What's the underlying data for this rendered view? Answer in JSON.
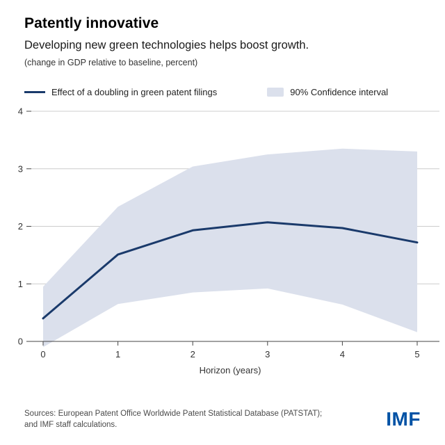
{
  "header": {
    "title": "Patently innovative",
    "subtitle": "Developing new green technologies helps boost growth.",
    "note": "(change in GDP relative to baseline, percent)"
  },
  "legend": {
    "line_label": "Effect of a doubling in green patent filings",
    "band_label": "90% Confidence interval"
  },
  "chart_data": {
    "type": "line",
    "x": [
      0,
      1,
      2,
      3,
      4,
      5
    ],
    "series": [
      {
        "name": "Effect of a doubling in green patent filings",
        "values": [
          0.4,
          1.51,
          1.93,
          2.07,
          1.97,
          1.72
        ]
      },
      {
        "name": "90% Confidence interval upper bound",
        "values": [
          0.95,
          2.34,
          3.04,
          3.25,
          3.35,
          3.3
        ]
      },
      {
        "name": "90% Confidence interval lower bound",
        "values": [
          -0.1,
          0.65,
          0.85,
          0.92,
          0.64,
          0.16
        ]
      }
    ],
    "title": "Patently innovative",
    "xlabel": "Horizon (years)",
    "ylabel": "",
    "ylim": [
      0,
      4
    ],
    "yticks": [
      0,
      1,
      2,
      3,
      4
    ],
    "xticks": [
      0,
      1,
      2,
      3,
      4,
      5
    ],
    "grid": true,
    "legend_position": "top"
  },
  "footer": {
    "sources_line1": "Sources: European Patent Office Worldwide Patent Statistical Database (PATSTAT);",
    "sources_line2": "and IMF staff calculations.",
    "logo": "IMF"
  },
  "colors": {
    "line": "#1a3a6b",
    "band": "#dbe0ec",
    "grid": "#cccccc",
    "axis": "#444444",
    "logo": "#0052a5"
  }
}
